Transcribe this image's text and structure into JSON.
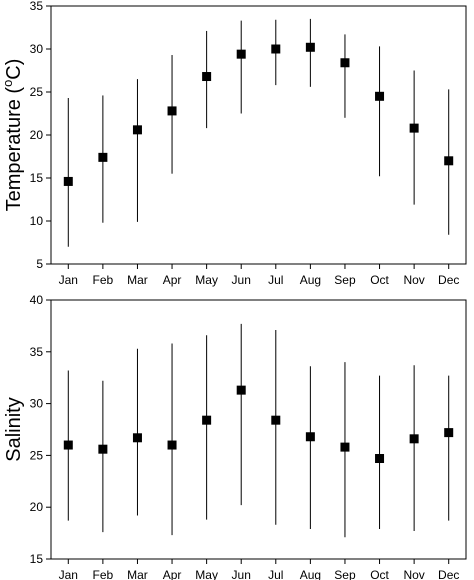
{
  "chart_data": [
    {
      "type": "scatter",
      "title": "",
      "xlabel": "",
      "ylabel_main": "Temperature (",
      "ylabel_sup": "o",
      "ylabel_tail": "C)",
      "categories": [
        "Jan",
        "Feb",
        "Mar",
        "Apr",
        "May",
        "Jun",
        "Jul",
        "Aug",
        "Sep",
        "Oct",
        "Nov",
        "Dec"
      ],
      "ylim": [
        5,
        35
      ],
      "yticks": [
        "5",
        "10",
        "15",
        "20",
        "25",
        "30",
        "35"
      ],
      "grid": false,
      "series": [
        {
          "values": [
            14.6,
            17.4,
            20.6,
            22.8,
            26.8,
            29.4,
            30.0,
            30.2,
            28.4,
            24.5,
            20.8,
            17.0
          ],
          "error_low": [
            7.0,
            9.8,
            9.9,
            15.5,
            20.8,
            22.5,
            25.8,
            25.6,
            22.0,
            15.2,
            11.9,
            8.4
          ],
          "error_high": [
            24.3,
            24.6,
            26.5,
            29.3,
            32.1,
            33.3,
            33.4,
            33.5,
            31.7,
            30.3,
            27.5,
            25.3
          ]
        }
      ]
    },
    {
      "type": "scatter",
      "title": "",
      "xlabel": "",
      "ylabel": "Salinity",
      "categories": [
        "Jan",
        "Feb",
        "Mar",
        "Apr",
        "May",
        "Jun",
        "Jul",
        "Aug",
        "Sep",
        "Oct",
        "Nov",
        "Dec"
      ],
      "ylim": [
        15,
        40
      ],
      "yticks": [
        "15",
        "20",
        "25",
        "30",
        "35",
        "40"
      ],
      "grid": false,
      "series": [
        {
          "values": [
            26.0,
            25.6,
            26.7,
            26.0,
            28.4,
            31.3,
            28.4,
            26.8,
            25.8,
            24.7,
            26.6,
            27.2
          ],
          "error_low": [
            18.7,
            17.6,
            19.2,
            17.3,
            18.8,
            20.2,
            18.3,
            17.9,
            17.1,
            17.9,
            17.7,
            18.7
          ],
          "error_high": [
            33.2,
            32.2,
            35.3,
            35.8,
            36.6,
            37.7,
            37.1,
            33.6,
            34.0,
            32.7,
            33.7,
            32.7
          ]
        }
      ]
    }
  ]
}
